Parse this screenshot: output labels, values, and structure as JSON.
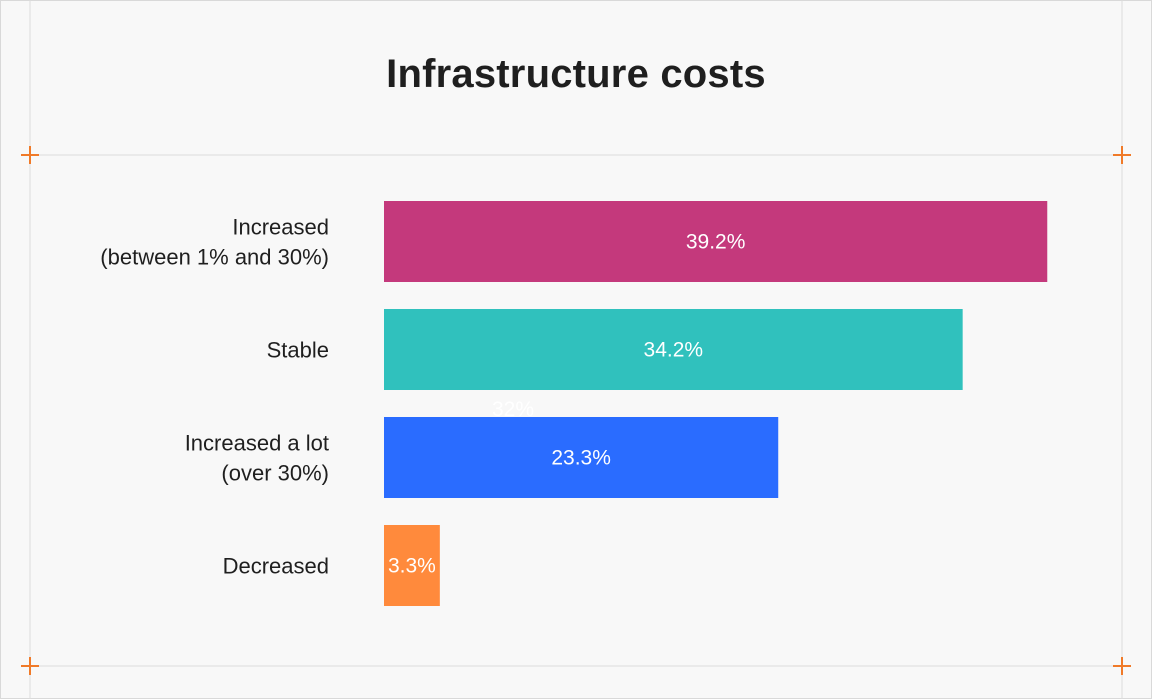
{
  "chart_data": {
    "type": "bar",
    "orientation": "horizontal",
    "title": "Infrastructure costs",
    "categories": [
      [
        "Increased",
        "(between 1% and 30%)"
      ],
      [
        "Stable"
      ],
      [
        "Increased a lot",
        "(over 30%)"
      ],
      [
        "Decreased"
      ]
    ],
    "values": [
      39.2,
      34.2,
      23.3,
      3.3
    ],
    "value_labels": [
      "39.2%",
      "34.2%",
      "23.3%",
      "3.3%"
    ],
    "colors": [
      "#c4397c",
      "#30c1bd",
      "#2a6cff",
      "#ff8a3c"
    ],
    "xlim": [
      0,
      45
    ],
    "stray_label": "32%",
    "grid": false,
    "legend": "none"
  }
}
